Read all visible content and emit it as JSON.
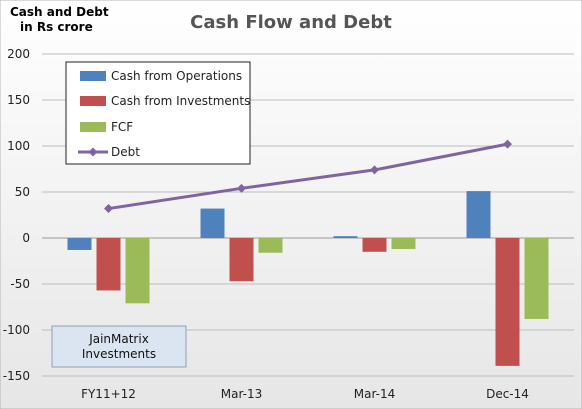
{
  "chart_data": {
    "type": "bar",
    "title": "Cash Flow and Debt",
    "ylabel_lines": [
      "Cash and Debt",
      "in Rs crore"
    ],
    "categories": [
      "FY11+12",
      "Mar-13",
      "Mar-14",
      "Dec-14"
    ],
    "ylim": [
      -150,
      200
    ],
    "yticks": [
      "200",
      "150",
      "100",
      "50",
      "0",
      "-50",
      "-100",
      "-150"
    ],
    "grid": true,
    "legend_position": "top-left",
    "series": [
      {
        "name": "Cash from Operations",
        "type": "bar",
        "color": "#4F81BD",
        "values": [
          -13,
          32,
          2,
          51
        ]
      },
      {
        "name": "Cash from Investments",
        "type": "bar",
        "color": "#C0504D",
        "values": [
          -57,
          -47,
          -15,
          -139
        ]
      },
      {
        "name": "FCF",
        "type": "bar",
        "color": "#9BBB59",
        "values": [
          -71,
          -16,
          -12,
          -88
        ]
      },
      {
        "name": "Debt",
        "type": "line",
        "color": "#8064A2",
        "values": [
          32,
          54,
          74,
          102
        ]
      }
    ],
    "watermark_lines": [
      "JainMatrix",
      "Investments"
    ]
  }
}
